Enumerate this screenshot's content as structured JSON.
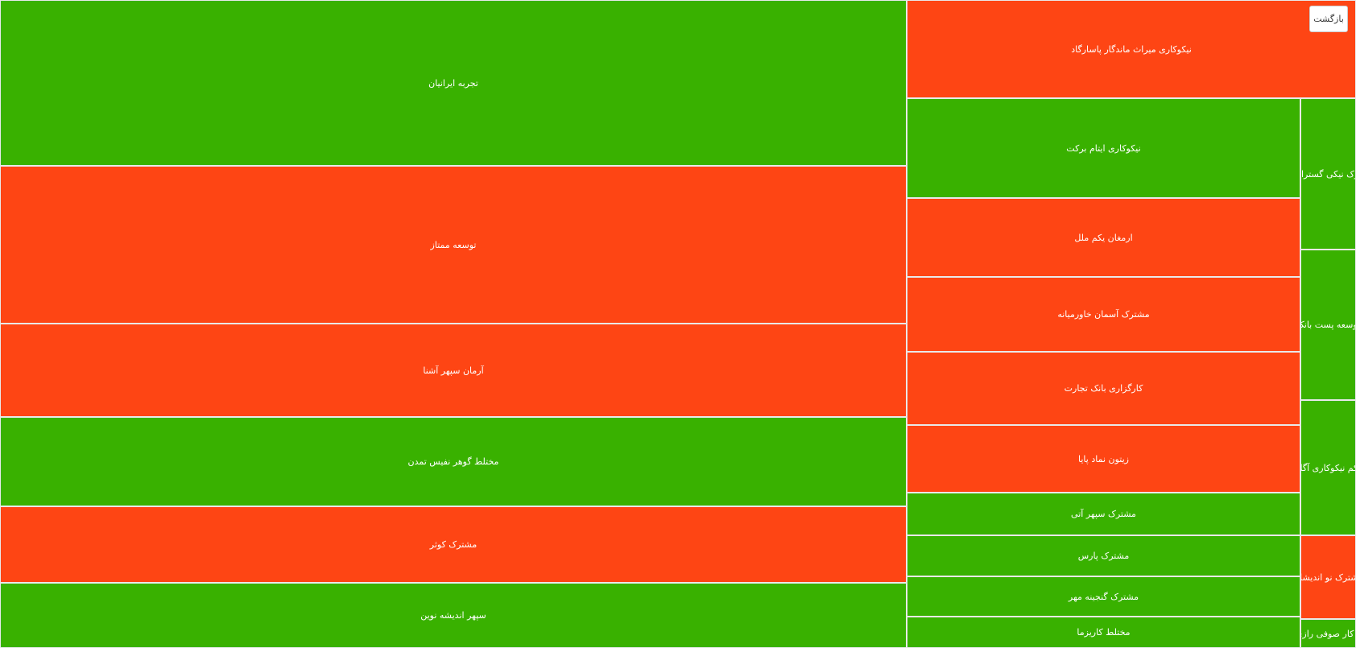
{
  "back_button_label": "بازگشت",
  "colors": {
    "positive": "#39b100",
    "negative": "#fe4514",
    "border": "#e9e9e9"
  },
  "chart_data": {
    "type": "treemap",
    "items": [
      {
        "label": "تجربه ایرانیان",
        "status": "positive"
      },
      {
        "label": "توسعه ممتاز",
        "status": "negative"
      },
      {
        "label": "آرمان سپهر آشنا",
        "status": "negative"
      },
      {
        "label": "مختلط گوهر نفیس تمدن",
        "status": "positive"
      },
      {
        "label": "مشترک کوثر",
        "status": "negative"
      },
      {
        "label": "سپهر اندیشه نوین",
        "status": "positive"
      },
      {
        "label": "نیکوکاری میراث ماندگار پاسارگاد",
        "status": "negative"
      },
      {
        "label": "نیکوکاری ایتام برکت",
        "status": "positive"
      },
      {
        "label": "ارمغان یکم ملل",
        "status": "negative"
      },
      {
        "label": "مشترک آسمان خاورمیانه",
        "status": "negative"
      },
      {
        "label": "کارگزاری بانک تجارت",
        "status": "negative"
      },
      {
        "label": "زیتون نماد پایا",
        "status": "negative"
      },
      {
        "label": "مشترک سپهر آتی",
        "status": "positive"
      },
      {
        "label": "مشترک پارس",
        "status": "positive"
      },
      {
        "label": "مشترک گنجینه مهر",
        "status": "positive"
      },
      {
        "label": "مختلط کاریزما",
        "status": "positive"
      },
      {
        "label": "برک نیکی گستران",
        "status": "positive"
      },
      {
        "label": "توسعه پست بانک",
        "status": "positive"
      },
      {
        "label": "یکم نیکوکاری آگاه",
        "status": "positive"
      },
      {
        "label": "مشترک نو اندیشان",
        "status": "negative"
      },
      {
        "label": "و کار صوفی رازی",
        "status": "positive"
      }
    ]
  }
}
